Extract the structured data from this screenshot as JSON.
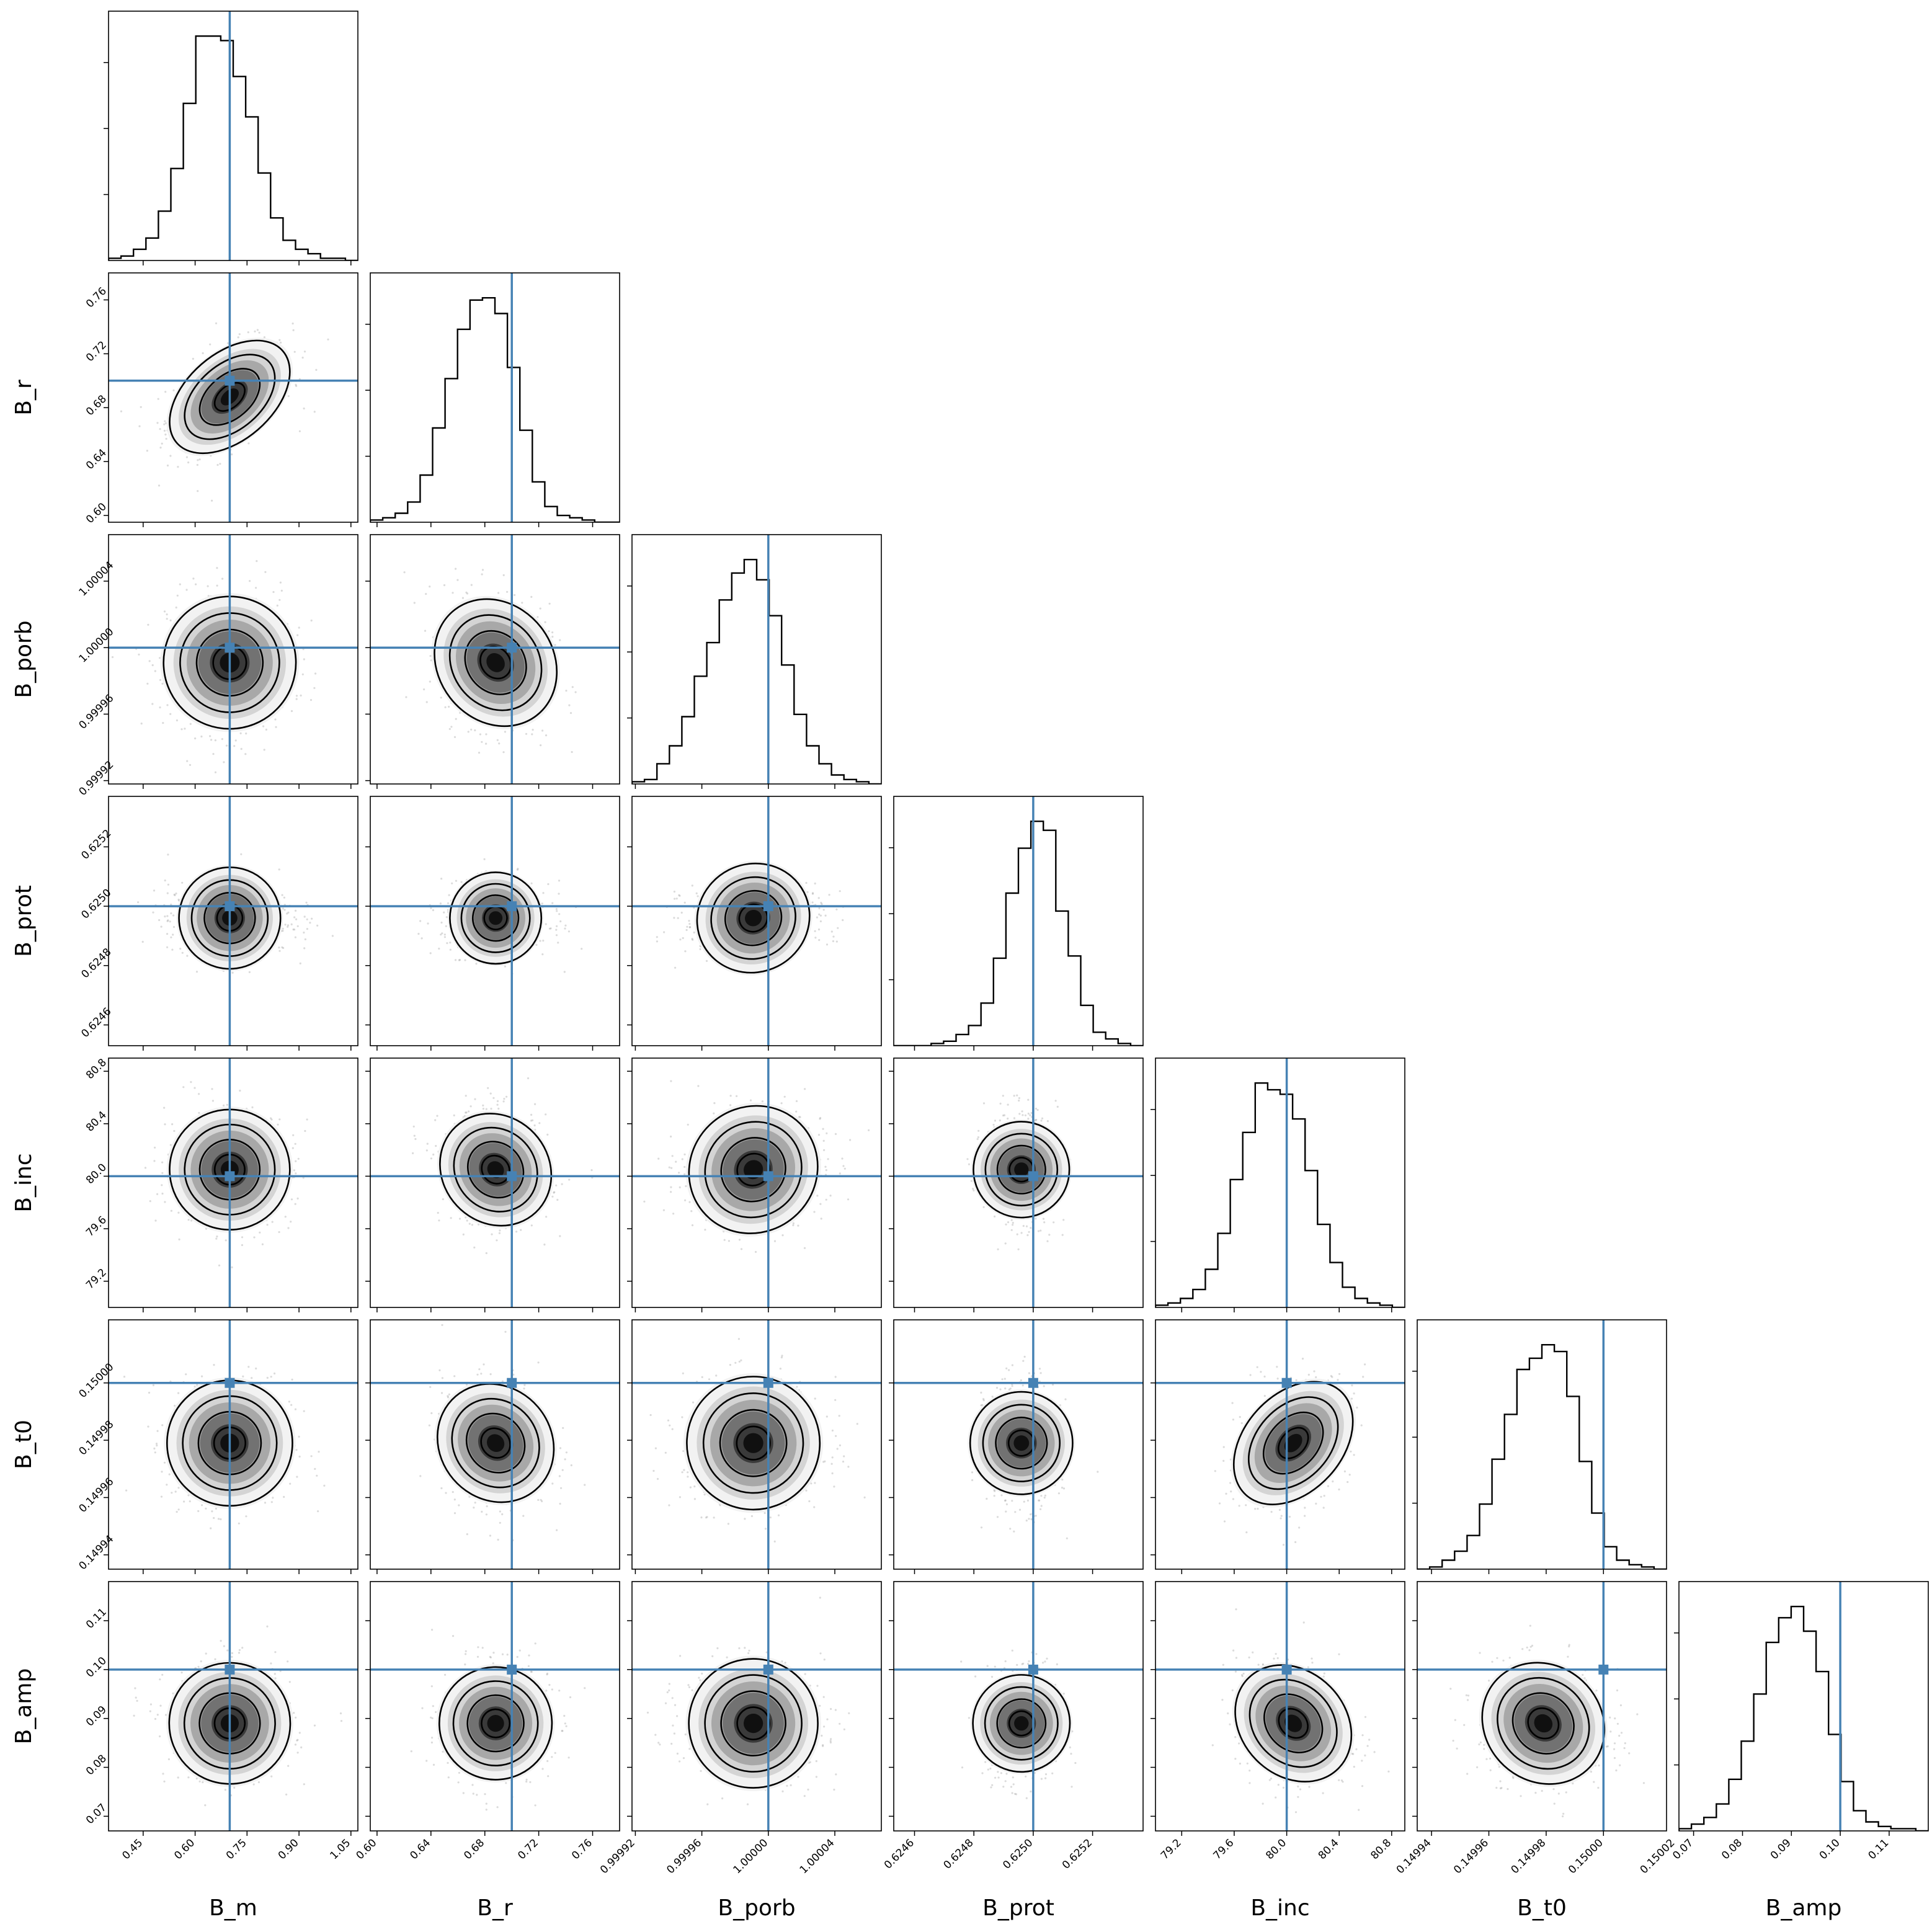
{
  "chart_data": {
    "type": "corner",
    "truth_color": "#4682b4",
    "parameters": [
      {
        "name": "B_m",
        "range": [
          0.35,
          1.07
        ],
        "truth": 0.7,
        "mean": 0.7,
        "sd": 0.09,
        "ticks": [
          0.45,
          0.6,
          0.75,
          0.9,
          1.05
        ],
        "tick_labels": [
          "0.45",
          "0.60",
          "0.75",
          "0.90",
          "1.05"
        ],
        "hist": [
          1,
          2,
          5,
          10,
          22,
          41,
          70,
          100,
          100,
          98,
          82,
          64,
          39,
          19,
          9,
          5,
          3,
          1,
          1,
          0
        ]
      },
      {
        "name": "B_r",
        "range": [
          0.595,
          0.78
        ],
        "truth": 0.7,
        "mean": 0.688,
        "sd": 0.02,
        "ticks": [
          0.6,
          0.64,
          0.68,
          0.72,
          0.76
        ],
        "tick_labels": [
          "0.60",
          "0.64",
          "0.68",
          "0.72",
          "0.76"
        ],
        "hist": [
          1,
          2,
          4,
          9,
          21,
          42,
          64,
          86,
          99,
          100,
          93,
          69,
          41,
          18,
          7,
          3,
          2,
          1,
          0,
          0
        ]
      },
      {
        "name": "B_porb",
        "range": [
          0.999918,
          1.000068
        ],
        "truth": 1.0,
        "mean": 0.999991,
        "sd": 2.1e-05,
        "ticks": [
          0.99992,
          0.99996,
          1.0,
          1.00004
        ],
        "tick_labels": [
          "0.99992",
          "0.99996",
          "1.00000",
          "1.00004"
        ],
        "hist": [
          1,
          2,
          9,
          17,
          30,
          48,
          63,
          82,
          94,
          100,
          91,
          75,
          53,
          31,
          17,
          9,
          4,
          2,
          1,
          0
        ]
      },
      {
        "name": "B_prot",
        "range": [
          0.62453,
          0.62537
        ],
        "truth": 0.625,
        "mean": 0.62496,
        "sd": 6e-05,
        "ticks": [
          0.6246,
          0.6248,
          0.625,
          0.6252
        ],
        "tick_labels": [
          "0.6246",
          "0.6248",
          "0.6250",
          "0.6252"
        ],
        "hist": [
          0,
          0,
          0,
          1,
          2,
          5,
          9,
          19,
          39,
          68,
          88,
          100,
          96,
          60,
          40,
          18,
          6,
          3,
          1,
          0
        ]
      },
      {
        "name": "B_inc",
        "range": [
          79.0,
          80.9
        ],
        "truth": 80.0,
        "mean": 80.05,
        "sd": 0.22,
        "ticks": [
          79.2,
          79.6,
          80.0,
          80.4,
          80.8
        ],
        "tick_labels": [
          "79.2",
          "79.6",
          "80.0",
          "80.4",
          "80.8"
        ],
        "hist": [
          1,
          2,
          4,
          8,
          17,
          33,
          57,
          78,
          100,
          97,
          95,
          84,
          61,
          37,
          20,
          9,
          4,
          2,
          1,
          0
        ]
      },
      {
        "name": "B_t0",
        "range": [
          0.149935,
          0.150022
        ],
        "truth": 0.15,
        "mean": 0.149979,
        "sd": 1.1e-05,
        "ticks": [
          0.14994,
          0.14996,
          0.14998,
          0.15
        ],
        "tick_labels": [
          "0.14994",
          "0.14996",
          "0.14998",
          "0.15000"
        ],
        "extra_tick_label": "0.15002",
        "hist": [
          0,
          1,
          4,
          8,
          15,
          29,
          49,
          69,
          89,
          94,
          100,
          97,
          77,
          48,
          25,
          10,
          4,
          2,
          1,
          0
        ]
      },
      {
        "name": "B_amp",
        "range": [
          0.067,
          0.118
        ],
        "truth": 0.1,
        "mean": 0.089,
        "sd": 0.006,
        "ticks": [
          0.07,
          0.08,
          0.09,
          0.1,
          0.11
        ],
        "tick_labels": [
          "0.07",
          "0.08",
          "0.09",
          "0.10",
          "0.11"
        ],
        "hist": [
          1,
          3,
          6,
          12,
          23,
          40,
          61,
          84,
          95,
          100,
          89,
          71,
          43,
          22,
          9,
          4,
          2,
          1,
          1,
          0
        ]
      }
    ],
    "correlations": [
      [
        0,
        1,
        0.45
      ],
      [
        0,
        2,
        0.0
      ],
      [
        1,
        2,
        -0.15
      ],
      [
        0,
        3,
        0.0
      ],
      [
        1,
        3,
        0.0
      ],
      [
        2,
        3,
        0.05
      ],
      [
        0,
        4,
        0.0
      ],
      [
        1,
        4,
        -0.1
      ],
      [
        2,
        4,
        0.05
      ],
      [
        3,
        4,
        0.0
      ],
      [
        0,
        5,
        0.0
      ],
      [
        1,
        5,
        -0.1
      ],
      [
        2,
        5,
        0.0
      ],
      [
        3,
        5,
        0.0
      ],
      [
        4,
        5,
        0.35
      ],
      [
        0,
        6,
        0.0
      ],
      [
        1,
        6,
        0.0
      ],
      [
        2,
        6,
        0.0
      ],
      [
        3,
        6,
        0.0
      ],
      [
        4,
        6,
        -0.2
      ],
      [
        5,
        6,
        -0.1
      ]
    ],
    "contour_levels_sigma": [
      0.5,
      1.0,
      1.5,
      2.0
    ]
  }
}
